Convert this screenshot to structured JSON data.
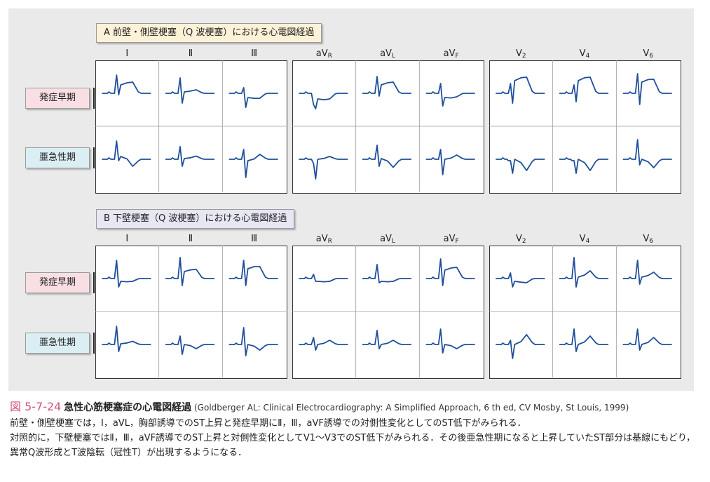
{
  "section_a_title": "A 前壁・側壁梗塞（Q 波梗塞）における心電図経過",
  "section_b_title": "B 下壁梗塞（Q 波梗塞）における心電図経過",
  "row_labels": {
    "early": "発症早期",
    "subacute": "亜急性期"
  },
  "leads": {
    "A": [
      {
        "main": "Ⅰ",
        "sub": ""
      },
      {
        "main": "Ⅱ",
        "sub": ""
      },
      {
        "main": "Ⅲ",
        "sub": ""
      },
      {
        "main": "aV",
        "sub": "R"
      },
      {
        "main": "aV",
        "sub": "L"
      },
      {
        "main": "aV",
        "sub": "F"
      },
      {
        "main": "V",
        "sub": "2"
      },
      {
        "main": "V",
        "sub": "4"
      },
      {
        "main": "V",
        "sub": "6"
      }
    ],
    "B": [
      {
        "main": "Ⅰ",
        "sub": ""
      },
      {
        "main": "Ⅱ",
        "sub": ""
      },
      {
        "main": "Ⅲ",
        "sub": ""
      },
      {
        "main": "aV",
        "sub": "R"
      },
      {
        "main": "aV",
        "sub": "L"
      },
      {
        "main": "aV",
        "sub": "F"
      },
      {
        "main": "V",
        "sub": "2"
      },
      {
        "main": "V",
        "sub": "4"
      },
      {
        "main": "V",
        "sub": "6"
      }
    ]
  },
  "trace_color": "#1f4f9a",
  "caption": {
    "fig_number": "図 5-7-24",
    "fig_title": "急性心筋梗塞症の心電図経過",
    "source": "(Goldberger AL: Clinical Electrocardiography: A Simplified Approach, 6 th ed, CV Mosby, St Louis, 1999)",
    "line1": "前壁・側壁梗塞では，Ⅰ，aVL，胸部誘導でのST上昇と発症早期にⅡ，Ⅲ，aVF誘導での対側性変化としてのST低下がみられる．",
    "line2": "対照的に，下壁梗塞ではⅡ，Ⅲ，aVF誘導でのST上昇と対側性変化としてV1～V3でのST低下がみられる．その後亜急性期になると上昇していたST部分は基線にもどり，異常Q波形成とT波陰転（冠性T）が出現するようになる．"
  }
}
